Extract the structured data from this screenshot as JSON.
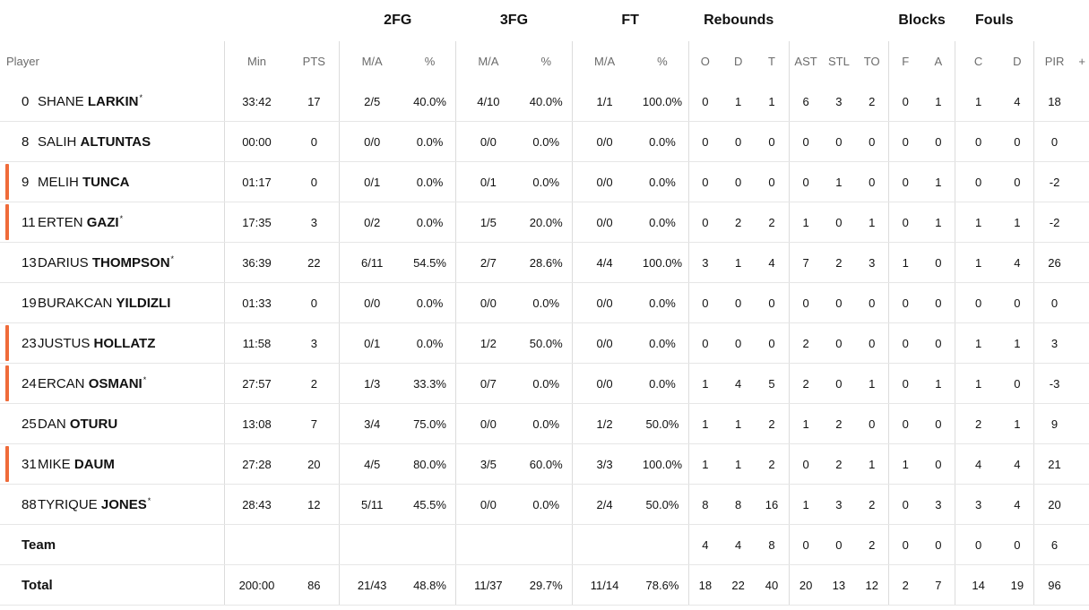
{
  "groups": {
    "two_fg": "2FG",
    "three_fg": "3FG",
    "ft": "FT",
    "rebounds": "Rebounds",
    "blocks": "Blocks",
    "fouls": "Fouls"
  },
  "headers": {
    "player": "Player",
    "min": "Min",
    "pts": "PTS",
    "fg2_ma": "M/A",
    "fg2_pct": "%",
    "fg3_ma": "M/A",
    "fg3_pct": "%",
    "ft_ma": "M/A",
    "ft_pct": "%",
    "reb_o": "O",
    "reb_d": "D",
    "reb_t": "T",
    "ast": "AST",
    "stl": "STL",
    "to": "TO",
    "blk_f": "F",
    "blk_a": "A",
    "foul_c": "C",
    "foul_d": "D",
    "pir": "PIR",
    "more": "+"
  },
  "players": [
    {
      "num": "0",
      "first": "SHANE",
      "last": "LARKIN",
      "star": "*",
      "marker": false,
      "min": "33:42",
      "pts": "17",
      "fg2": "2/5",
      "fg2p": "40.0%",
      "fg3": "4/10",
      "fg3p": "40.0%",
      "ft": "1/1",
      "ftp": "100.0%",
      "o": "0",
      "d": "1",
      "t": "1",
      "ast": "6",
      "stl": "3",
      "to": "2",
      "bf": "0",
      "ba": "1",
      "fc": "1",
      "fd": "4",
      "pir": "18"
    },
    {
      "num": "8",
      "first": "SALIH",
      "last": "ALTUNTAS",
      "star": "",
      "marker": false,
      "min": "00:00",
      "pts": "0",
      "fg2": "0/0",
      "fg2p": "0.0%",
      "fg3": "0/0",
      "fg3p": "0.0%",
      "ft": "0/0",
      "ftp": "0.0%",
      "o": "0",
      "d": "0",
      "t": "0",
      "ast": "0",
      "stl": "0",
      "to": "0",
      "bf": "0",
      "ba": "0",
      "fc": "0",
      "fd": "0",
      "pir": "0"
    },
    {
      "num": "9",
      "first": "MELIH",
      "last": "TUNCA",
      "star": "",
      "marker": true,
      "min": "01:17",
      "pts": "0",
      "fg2": "0/1",
      "fg2p": "0.0%",
      "fg3": "0/1",
      "fg3p": "0.0%",
      "ft": "0/0",
      "ftp": "0.0%",
      "o": "0",
      "d": "0",
      "t": "0",
      "ast": "0",
      "stl": "1",
      "to": "0",
      "bf": "0",
      "ba": "1",
      "fc": "0",
      "fd": "0",
      "pir": "-2"
    },
    {
      "num": "11",
      "first": "ERTEN",
      "last": "GAZI",
      "star": "*",
      "marker": true,
      "min": "17:35",
      "pts": "3",
      "fg2": "0/2",
      "fg2p": "0.0%",
      "fg3": "1/5",
      "fg3p": "20.0%",
      "ft": "0/0",
      "ftp": "0.0%",
      "o": "0",
      "d": "2",
      "t": "2",
      "ast": "1",
      "stl": "0",
      "to": "1",
      "bf": "0",
      "ba": "1",
      "fc": "1",
      "fd": "1",
      "pir": "-2"
    },
    {
      "num": "13",
      "first": "DARIUS",
      "last": "THOMPSON",
      "star": "*",
      "marker": false,
      "min": "36:39",
      "pts": "22",
      "fg2": "6/11",
      "fg2p": "54.5%",
      "fg3": "2/7",
      "fg3p": "28.6%",
      "ft": "4/4",
      "ftp": "100.0%",
      "o": "3",
      "d": "1",
      "t": "4",
      "ast": "7",
      "stl": "2",
      "to": "3",
      "bf": "1",
      "ba": "0",
      "fc": "1",
      "fd": "4",
      "pir": "26"
    },
    {
      "num": "19",
      "first": "BURAKCAN",
      "last": "YILDIZLI",
      "star": "",
      "marker": false,
      "min": "01:33",
      "pts": "0",
      "fg2": "0/0",
      "fg2p": "0.0%",
      "fg3": "0/0",
      "fg3p": "0.0%",
      "ft": "0/0",
      "ftp": "0.0%",
      "o": "0",
      "d": "0",
      "t": "0",
      "ast": "0",
      "stl": "0",
      "to": "0",
      "bf": "0",
      "ba": "0",
      "fc": "0",
      "fd": "0",
      "pir": "0"
    },
    {
      "num": "23",
      "first": "JUSTUS",
      "last": "HOLLATZ",
      "star": "",
      "marker": true,
      "min": "11:58",
      "pts": "3",
      "fg2": "0/1",
      "fg2p": "0.0%",
      "fg3": "1/2",
      "fg3p": "50.0%",
      "ft": "0/0",
      "ftp": "0.0%",
      "o": "0",
      "d": "0",
      "t": "0",
      "ast": "2",
      "stl": "0",
      "to": "0",
      "bf": "0",
      "ba": "0",
      "fc": "1",
      "fd": "1",
      "pir": "3"
    },
    {
      "num": "24",
      "first": "ERCAN",
      "last": "OSMANI",
      "star": "*",
      "marker": true,
      "min": "27:57",
      "pts": "2",
      "fg2": "1/3",
      "fg2p": "33.3%",
      "fg3": "0/7",
      "fg3p": "0.0%",
      "ft": "0/0",
      "ftp": "0.0%",
      "o": "1",
      "d": "4",
      "t": "5",
      "ast": "2",
      "stl": "0",
      "to": "1",
      "bf": "0",
      "ba": "1",
      "fc": "1",
      "fd": "0",
      "pir": "-3"
    },
    {
      "num": "25",
      "first": "DAN",
      "last": "OTURU",
      "star": "",
      "marker": false,
      "min": "13:08",
      "pts": "7",
      "fg2": "3/4",
      "fg2p": "75.0%",
      "fg3": "0/0",
      "fg3p": "0.0%",
      "ft": "1/2",
      "ftp": "50.0%",
      "o": "1",
      "d": "1",
      "t": "2",
      "ast": "1",
      "stl": "2",
      "to": "0",
      "bf": "0",
      "ba": "0",
      "fc": "2",
      "fd": "1",
      "pir": "9"
    },
    {
      "num": "31",
      "first": "MIKE",
      "last": "DAUM",
      "star": "",
      "marker": true,
      "min": "27:28",
      "pts": "20",
      "fg2": "4/5",
      "fg2p": "80.0%",
      "fg3": "3/5",
      "fg3p": "60.0%",
      "ft": "3/3",
      "ftp": "100.0%",
      "o": "1",
      "d": "1",
      "t": "2",
      "ast": "0",
      "stl": "2",
      "to": "1",
      "bf": "1",
      "ba": "0",
      "fc": "4",
      "fd": "4",
      "pir": "21"
    },
    {
      "num": "88",
      "first": "TYRIQUE",
      "last": "JONES",
      "star": "*",
      "marker": false,
      "min": "28:43",
      "pts": "12",
      "fg2": "5/11",
      "fg2p": "45.5%",
      "fg3": "0/0",
      "fg3p": "0.0%",
      "ft": "2/4",
      "ftp": "50.0%",
      "o": "8",
      "d": "8",
      "t": "16",
      "ast": "1",
      "stl": "3",
      "to": "2",
      "bf": "0",
      "ba": "3",
      "fc": "3",
      "fd": "4",
      "pir": "20"
    }
  ],
  "team": {
    "label": "Team",
    "o": "4",
    "d": "4",
    "t": "8",
    "ast": "0",
    "stl": "0",
    "to": "2",
    "bf": "0",
    "ba": "0",
    "fc": "0",
    "fd": "0",
    "pir": "6"
  },
  "total": {
    "label": "Total",
    "min": "200:00",
    "pts": "86",
    "fg2": "21/43",
    "fg2p": "48.8%",
    "fg3": "11/37",
    "fg3p": "29.7%",
    "ft": "11/14",
    "ftp": "78.6%",
    "o": "18",
    "d": "22",
    "t": "40",
    "ast": "20",
    "stl": "13",
    "to": "12",
    "bf": "2",
    "ba": "7",
    "fc": "14",
    "fd": "19",
    "pir": "96"
  },
  "colors": {
    "marker": "#ef6b3a",
    "separator": "#dcdcdc",
    "row_border": "#e6e6e6",
    "header_text": "#6b6b6b"
  }
}
